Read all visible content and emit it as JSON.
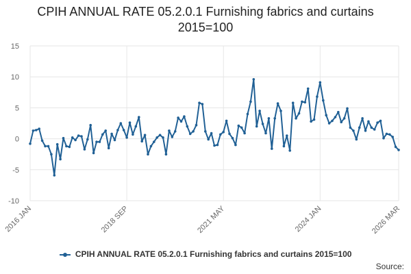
{
  "chart_data": {
    "type": "line",
    "title_lines": [
      "CPIH ANNUAL RATE 05.2.0.1 Furnishing fabrics and curtains",
      "2015=100"
    ],
    "yticks": [
      "15",
      "10",
      "5",
      "0",
      "-5",
      "-10"
    ],
    "ylim": [
      -10,
      15
    ],
    "xticks": [
      {
        "label": "2016 JAN",
        "index": 0
      },
      {
        "label": "2018 SEP",
        "index": 32
      },
      {
        "label": "2021 MAY",
        "index": 64
      },
      {
        "label": "2024 JAN",
        "index": 96
      },
      {
        "label": "2026 MAR",
        "index": 122
      }
    ],
    "grid": true,
    "legend_position": "bottom",
    "series": [
      {
        "name": "CPIH ANNUAL RATE 05.2.0.1 Furnishing fabrics and curtains 2015=100",
        "color": "#206095",
        "values": [
          -0.8,
          1.3,
          1.4,
          1.6,
          -0.3,
          -1.2,
          -1.2,
          -2.5,
          -5.9,
          -0.9,
          -3.3,
          0.1,
          -1.2,
          -1.3,
          0.2,
          -0.2,
          0.5,
          0.4,
          -1.7,
          -0.1,
          2.2,
          -2.3,
          -0.5,
          -0.5,
          0.7,
          1.3,
          -1.5,
          0.8,
          -0.2,
          1.4,
          2.5,
          1.4,
          0.2,
          2.6,
          0.7,
          2.0,
          3.5,
          -0.4,
          0.6,
          -2.5,
          -1.2,
          -0.5,
          0.2,
          0.6,
          0.2,
          -2.5,
          1.3,
          0.3,
          1.2,
          3.4,
          2.8,
          3.6,
          2.0,
          0.8,
          1.2,
          2.2,
          5.8,
          5.6,
          1.2,
          -0.1,
          0.9,
          -1.1,
          -1.0,
          0.7,
          1.1,
          2.9,
          0.8,
          0.1,
          -1.0,
          2.1,
          1.8,
          0.9,
          4.0,
          6.0,
          9.6,
          2.0,
          4.5,
          2.4,
          0.9,
          3.3,
          -1.6,
          3.3,
          5.7,
          4.5,
          -1.2,
          0.5,
          -1.9,
          5.8,
          3.3,
          4.1,
          6.0,
          5.9,
          8.1,
          2.8,
          3.1,
          6.8,
          9.1,
          6.2,
          3.8,
          2.5,
          2.9,
          3.5,
          4.3,
          2.7,
          3.3,
          4.9,
          1.8,
          1.3,
          -0.1,
          1.8,
          3.3,
          1.3,
          2.8,
          1.8,
          1.5,
          2.6,
          2.9,
          0.1,
          0.8,
          0.7,
          0.3,
          -1.3,
          -1.8
        ]
      }
    ]
  },
  "source_label": "Source:"
}
